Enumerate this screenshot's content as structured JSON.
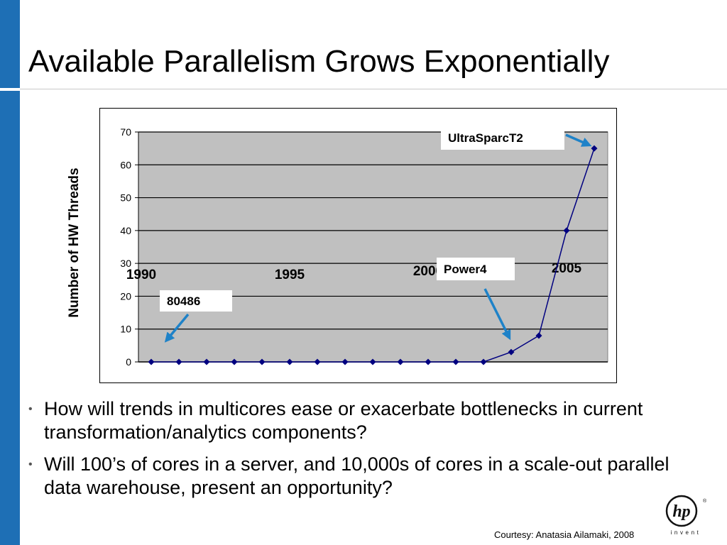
{
  "slide": {
    "title": "Available Parallelism Grows Exponentially",
    "bullets": [
      "How will trends in multicores ease or exacerbate bottlenecks in current transformation/analytics components?",
      "Will 100’s of cores in a server, and 10,000s of cores in a scale-out parallel data warehouse, present an opportunity?"
    ],
    "courtesy": "Courtesy: Anatasia Ailamaki, 2008",
    "logo": {
      "icon": "hp-logo",
      "text": "invent"
    }
  },
  "colors": {
    "accent_bar": "#1e6fb5",
    "plot_area": "#c0c0c0",
    "series_line": "#000080",
    "arrow": "#1e82c8"
  },
  "chart_data": {
    "type": "line",
    "ylabel": "Number of HW Threads",
    "xlabel": "",
    "ylim": [
      0,
      70
    ],
    "y_ticks": [
      0,
      10,
      20,
      30,
      40,
      50,
      60,
      70
    ],
    "grid": true,
    "x_tick_labels": [
      {
        "label": "1990",
        "year": 1990
      },
      {
        "label": "1995",
        "year": 1995
      },
      {
        "label": "2000",
        "year": 2000
      },
      {
        "label": "2005",
        "year": 2005
      }
    ],
    "series": [
      {
        "x": [
          1990,
          1991,
          1992,
          1993,
          1994,
          1995,
          1996,
          1997,
          1998,
          1999,
          2000,
          2001,
          2002,
          2003,
          2004,
          2005,
          2006
        ],
        "values": [
          0,
          0,
          0,
          0,
          0,
          0,
          0,
          0,
          0,
          0,
          0,
          0,
          0,
          3,
          8,
          40,
          65
        ]
      }
    ],
    "annotations": [
      {
        "text": "80486",
        "target_year": 1990,
        "target_value": 0
      },
      {
        "text": "Power4",
        "target_year": 2004,
        "target_value": 8
      },
      {
        "text": "UltraSparcT2",
        "target_year": 2006,
        "target_value": 65
      }
    ]
  }
}
